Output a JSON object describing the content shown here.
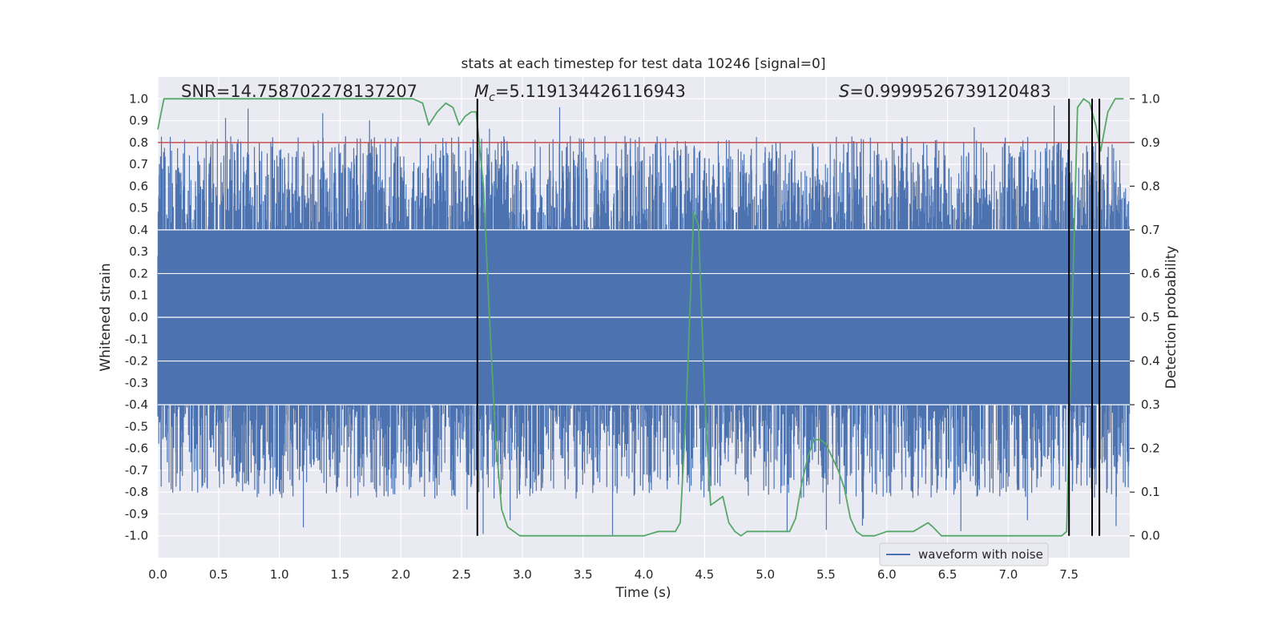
{
  "chart_data": {
    "type": "line",
    "title": "stats at each timestep for test data 10246 [signal=0]",
    "xlabel": "Time (s)",
    "ylabel": "Whitened strain",
    "y2label": "Detection probability",
    "xlim": [
      0.0,
      8.0
    ],
    "ylim": [
      -1.1,
      1.1
    ],
    "y2lim": [
      -0.05,
      1.05
    ],
    "xticks": [
      "0.0",
      "0.5",
      "1.0",
      "1.5",
      "2.0",
      "2.5",
      "3.0",
      "3.5",
      "4.0",
      "4.5",
      "5.0",
      "5.5",
      "6.0",
      "6.5",
      "7.0",
      "7.5"
    ],
    "yticks": [
      "1.0",
      "0.9",
      "0.8",
      "0.7",
      "0.6",
      "0.5",
      "0.4",
      "0.3",
      "0.2",
      "0.1",
      "0.0",
      "-0.1",
      "-0.2",
      "-0.3",
      "-0.4",
      "-0.5",
      "-0.6",
      "-0.7",
      "-0.8",
      "-0.9",
      "-1.0"
    ],
    "y2ticks": [
      "1.0",
      "0.9",
      "0.8",
      "0.7",
      "0.6",
      "0.5",
      "0.4",
      "0.3",
      "0.2",
      "0.1",
      "0.0"
    ],
    "annotations": {
      "snr": "SNR=14.758702278137207",
      "mc": "=5.119134426116943",
      "mc_symbol": "M",
      "mc_sub": "c",
      "s": "=0.9999526739120483",
      "s_symbol": "S"
    },
    "legend": {
      "label": "waveform with noise",
      "position": "lower-right"
    },
    "threshold": {
      "value": 0.9,
      "axis": "right",
      "color": "#c44e52"
    },
    "vertical_markers": [
      2.63,
      7.5,
      7.69,
      7.75
    ],
    "colors": {
      "waveform": "#4c72b0",
      "probability": "#55a868",
      "marker": "#000000",
      "background": "#eaeaf2",
      "grid": "#ffffff"
    },
    "waveform_envelope": {
      "description_free": true,
      "band_top": 0.4,
      "band_bottom": -0.4,
      "peak_seed": 10246,
      "count": 3200
    },
    "series": [
      {
        "name": "detection probability",
        "axis": "right",
        "x": [
          0.0,
          0.05,
          0.1,
          0.2,
          0.5,
          1.0,
          1.5,
          2.0,
          2.1,
          2.18,
          2.23,
          2.3,
          2.37,
          2.43,
          2.48,
          2.53,
          2.58,
          2.62,
          2.68,
          2.73,
          2.78,
          2.83,
          2.88,
          2.93,
          2.98,
          3.05,
          3.2,
          3.5,
          3.8,
          4.0,
          4.12,
          4.2,
          4.26,
          4.3,
          4.35,
          4.41,
          4.45,
          4.5,
          4.55,
          4.6,
          4.65,
          4.7,
          4.75,
          4.8,
          4.85,
          4.95,
          5.1,
          5.2,
          5.25,
          5.3,
          5.35,
          5.4,
          5.45,
          5.5,
          5.55,
          5.6,
          5.65,
          5.7,
          5.75,
          5.8,
          5.9,
          6.0,
          6.08,
          6.15,
          6.22,
          6.28,
          6.34,
          6.38,
          6.45,
          6.52,
          6.6,
          6.8,
          7.0,
          7.1,
          7.3,
          7.44,
          7.48,
          7.52,
          7.57,
          7.62,
          7.67,
          7.72,
          7.76,
          7.82,
          7.88,
          7.95
        ],
        "y": [
          0.93,
          1.0,
          1.0,
          1.0,
          1.0,
          1.0,
          1.0,
          1.0,
          1.0,
          0.99,
          0.94,
          0.97,
          0.99,
          0.98,
          0.94,
          0.96,
          0.97,
          0.97,
          0.8,
          0.5,
          0.22,
          0.06,
          0.02,
          0.01,
          0.0,
          0.0,
          0.0,
          0.0,
          0.0,
          0.0,
          0.01,
          0.01,
          0.01,
          0.03,
          0.3,
          0.74,
          0.71,
          0.32,
          0.07,
          0.08,
          0.09,
          0.03,
          0.01,
          0.0,
          0.01,
          0.01,
          0.01,
          0.01,
          0.04,
          0.12,
          0.18,
          0.22,
          0.22,
          0.21,
          0.18,
          0.15,
          0.11,
          0.04,
          0.01,
          0.0,
          0.0,
          0.01,
          0.01,
          0.01,
          0.01,
          0.02,
          0.03,
          0.02,
          0.0,
          0.0,
          0.0,
          0.0,
          0.0,
          0.0,
          0.0,
          0.0,
          0.01,
          0.45,
          0.98,
          1.0,
          0.99,
          0.94,
          0.88,
          0.97,
          1.0,
          1.0
        ]
      }
    ]
  }
}
